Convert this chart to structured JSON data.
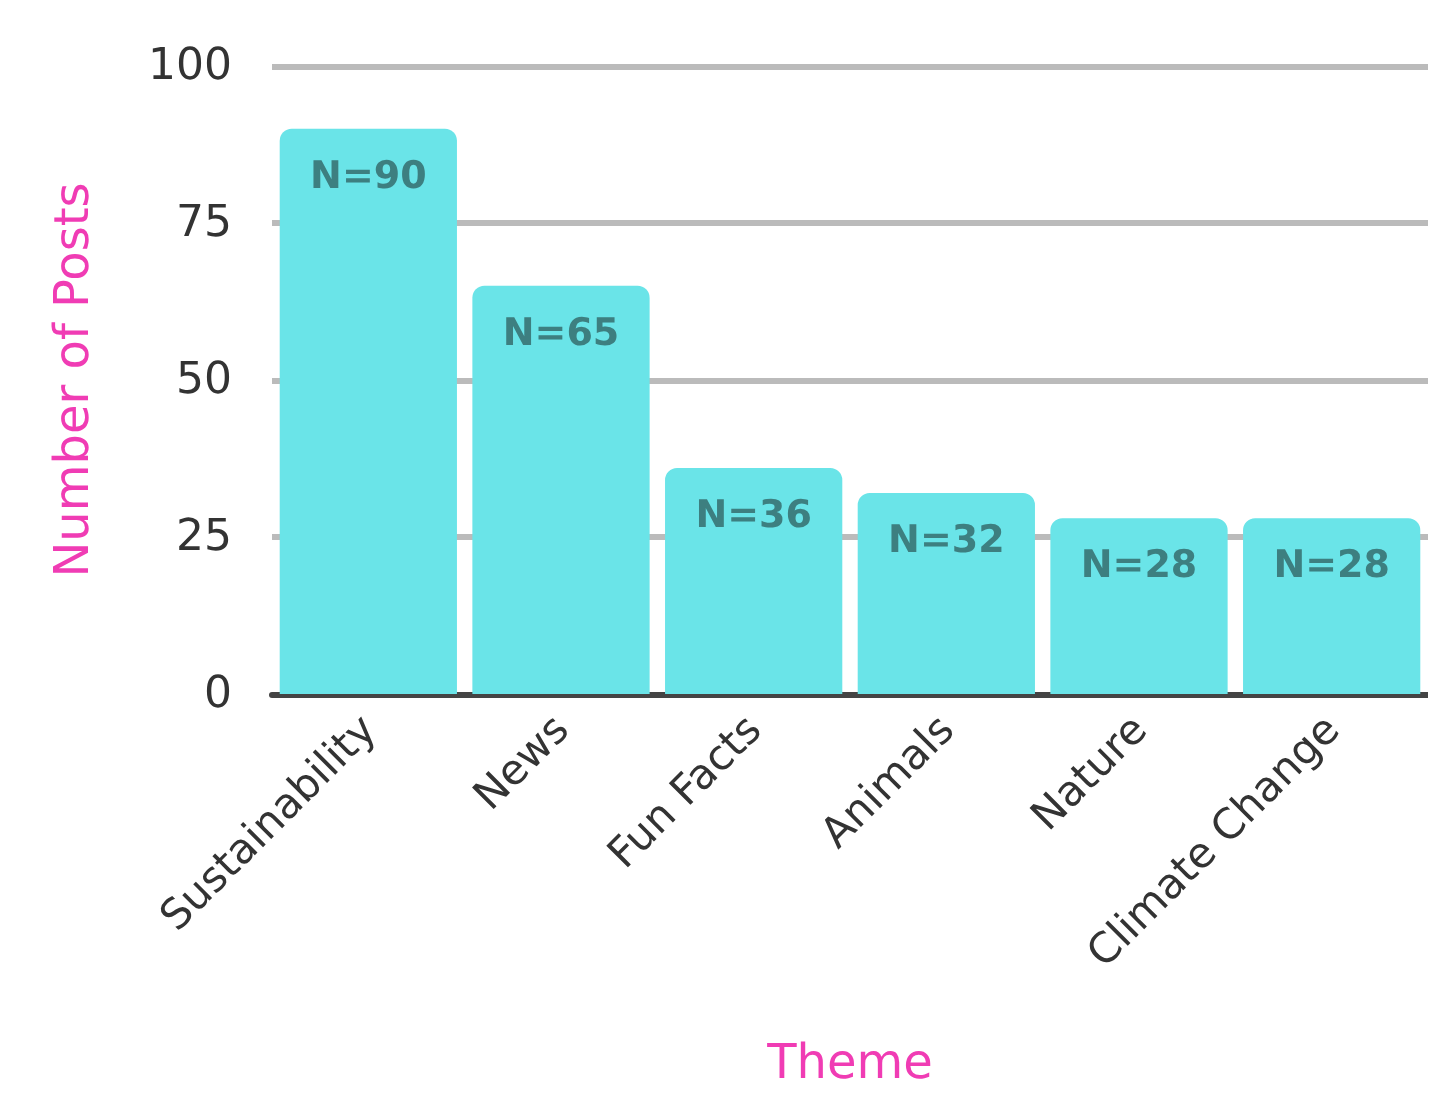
{
  "chart_data": {
    "type": "bar",
    "xlabel": "Theme",
    "ylabel": "Number of Posts",
    "categories": [
      "Sustainability",
      "News",
      "Fun Facts",
      "Animals",
      "Nature",
      "Climate Change"
    ],
    "values": [
      90,
      65,
      36,
      32,
      28,
      28
    ],
    "color": "#6ae4e8",
    "value_labels": [
      "N=90",
      "N=65",
      "N=36",
      "N=32",
      "N=28",
      "N=28"
    ],
    "ylim": [
      0,
      100
    ],
    "yticks": [
      0,
      25,
      50,
      75,
      100
    ],
    "grid": "y"
  }
}
